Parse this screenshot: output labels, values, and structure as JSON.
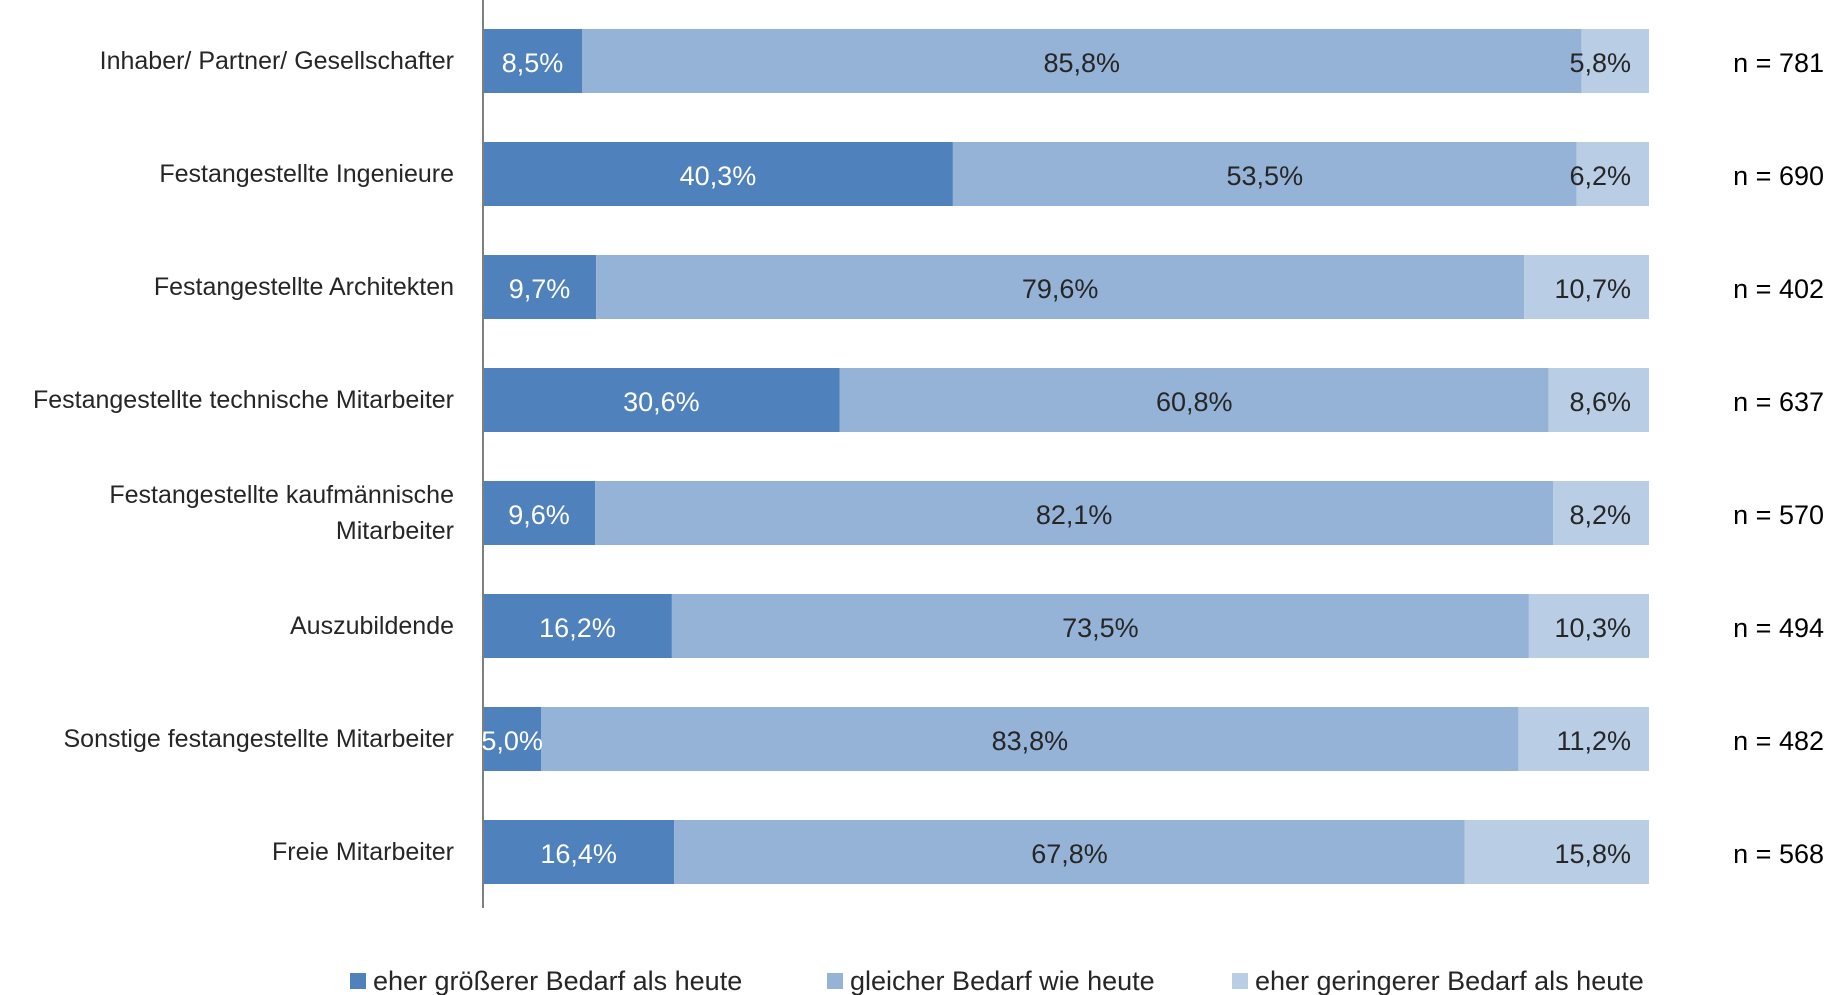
{
  "chart_data": {
    "type": "bar",
    "orientation": "horizontal",
    "stacked": true,
    "percent": true,
    "categories": [
      "Inhaber/ Partner/ Gesellschafter",
      "Festangestellte Ingenieure",
      "Festangestellte Architekten",
      "Festangestellte technische Mitarbeiter",
      "Festangestellte kaufmännische Mitarbeiter",
      "Auszubildende",
      "Sonstige festangestellte Mitarbeiter",
      "Freie Mitarbeiter"
    ],
    "category_lines": [
      [
        "Inhaber/ Partner/ Gesellschafter"
      ],
      [
        "Festangestellte Ingenieure"
      ],
      [
        "Festangestellte Architekten"
      ],
      [
        "Festangestellte technische Mitarbeiter"
      ],
      [
        "Festangestellte kaufmännische",
        "Mitarbeiter"
      ],
      [
        "Auszubildende"
      ],
      [
        "Sonstige festangestellte Mitarbeiter"
      ],
      [
        "Freie Mitarbeiter"
      ]
    ],
    "series": [
      {
        "name": "eher größerer Bedarf als  heute",
        "color": "#4f81bd",
        "label_color": "#ffffff",
        "values": [
          8.5,
          40.3,
          9.7,
          30.6,
          9.6,
          16.2,
          5.0,
          16.4
        ],
        "labels": [
          "8,5%",
          "40,3%",
          "9,7%",
          "30,6%",
          "9,6%",
          "16,2%",
          "5,0%",
          "16,4%"
        ]
      },
      {
        "name": "gleicher Bedarf wie heute",
        "color": "#95b3d7",
        "label_color": "#262626",
        "values": [
          85.8,
          53.5,
          79.6,
          60.8,
          82.1,
          73.5,
          83.8,
          67.8
        ],
        "labels": [
          "85,8%",
          "53,5%",
          "79,6%",
          "60,8%",
          "82,1%",
          "73,5%",
          "83,8%",
          "67,8%"
        ]
      },
      {
        "name": "eher geringerer Bedarf als heute",
        "color": "#b9cde5",
        "label_color": "#262626",
        "values": [
          5.8,
          6.2,
          10.7,
          8.6,
          8.2,
          10.3,
          11.2,
          15.8
        ],
        "labels": [
          "5,8%",
          "6,2%",
          "10,7%",
          "8,6%",
          "8,2%",
          "10,3%",
          "11,2%",
          "15,8%"
        ]
      }
    ],
    "n_labels": [
      "n = 781",
      "n = 690",
      "n = 402",
      "n = 637",
      "n = 570",
      "n = 494",
      "n = 482",
      "n = 568"
    ],
    "xlim": [
      0,
      100
    ],
    "grid": false,
    "legend_position": "bottom"
  }
}
